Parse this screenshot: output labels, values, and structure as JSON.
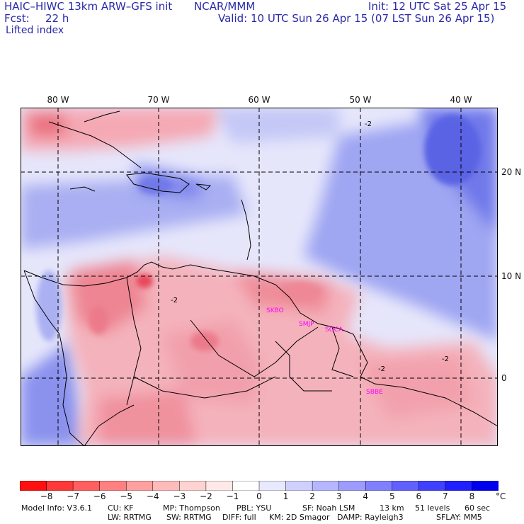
{
  "header": {
    "model": "HAIC–HIWC 13km ARW–GFS init",
    "org": "NCAR/MMM",
    "init": "Init: 12 UTC Sat 25 Apr 15",
    "fcst_label": "Fcst:",
    "fcst_value": "22 h",
    "valid": "Valid: 10 UTC Sun 26 Apr 15 (07 LST Sun 26 Apr 15)",
    "field": "Lifted index"
  },
  "map": {
    "lon_labels": [
      "80 W",
      "70 W",
      "60 W",
      "50 W",
      "40 W"
    ],
    "lat_labels": [
      "20 N",
      "10 N",
      "0"
    ],
    "contour_label": "-2",
    "stations": [
      "SKBO",
      "SMJP",
      "SOCA",
      "SBBE"
    ],
    "station_color": "#ff00ff"
  },
  "colorbar": {
    "ticks": [
      "−8",
      "−7",
      "−6",
      "−5",
      "−4",
      "−3",
      "−2",
      "−1",
      "0",
      "1",
      "2",
      "3",
      "4",
      "5",
      "6",
      "7",
      "8"
    ],
    "unit": "°C",
    "colors": [
      "#ff1010",
      "#ff3838",
      "#ff5f5f",
      "#ff8080",
      "#ffa0a0",
      "#ffbaba",
      "#ffd2d2",
      "#ffe8e8",
      "#ffffff",
      "#e8e8ff",
      "#d0d0ff",
      "#b6b6ff",
      "#9c9cff",
      "#8080ff",
      "#6060ff",
      "#4040ff",
      "#2020ff",
      "#0000f0"
    ]
  },
  "footer": {
    "line1": {
      "model_info": "Model Info: V3.6.1",
      "cu": "CU: KF",
      "mp": "MP: Thompson",
      "pbl": "PBL: YSU",
      "sf": "SF: Noah LSM",
      "res": "13 km",
      "levels": "51 levels",
      "dt": "60 sec"
    },
    "line2": {
      "lw": "LW: RRTMG",
      "sw": "SW: RRTMG",
      "diff": "DIFF: full",
      "km": "KM: 2D Smagor",
      "damp": "DAMP: Rayleigh3",
      "sflay": "SFLAY: MM5"
    }
  }
}
